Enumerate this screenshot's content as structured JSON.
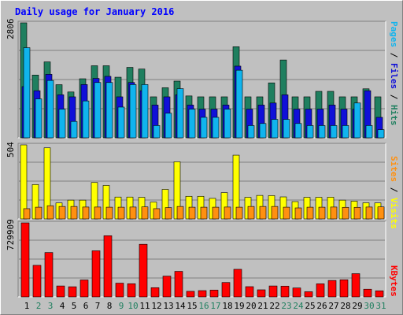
{
  "chart_data": [
    {
      "type": "bar",
      "title": "Daily usage for January 2016",
      "categories": [
        "1",
        "2",
        "3",
        "4",
        "5",
        "6",
        "7",
        "8",
        "9",
        "10",
        "11",
        "12",
        "13",
        "14",
        "15",
        "16",
        "17",
        "18",
        "19",
        "20",
        "21",
        "22",
        "23",
        "24",
        "25",
        "26",
        "27",
        "28",
        "29",
        "30",
        "31"
      ],
      "weekend_days": [
        "2",
        "3",
        "9",
        "10",
        "16",
        "17",
        "23",
        "24",
        "30",
        "31"
      ],
      "ylabel_max": "2806",
      "ylim": [
        0,
        2806
      ],
      "series": [
        {
          "name": "Hits",
          "color": "#1f7f5f",
          "values": [
            2806,
            1532,
            1853,
            1297,
            1119,
            1441,
            1759,
            1759,
            1479,
            1719,
            1679,
            1000,
            1222,
            1384,
            1022,
            1000,
            1000,
            1000,
            2223,
            1000,
            1000,
            1341,
            1900,
            1000,
            1000,
            1134,
            1134,
            1000,
            1000,
            1196,
            1000
          ]
        },
        {
          "name": "Files",
          "color": "#1010d8",
          "values": [
            1250,
            1150,
            1550,
            1050,
            1000,
            1300,
            1450,
            1500,
            1000,
            1350,
            1150,
            800,
            1000,
            1050,
            800,
            700,
            700,
            800,
            1750,
            700,
            800,
            850,
            1050,
            700,
            700,
            700,
            800,
            700,
            700,
            1150,
            500
          ]
        },
        {
          "name": "Pages",
          "color": "#10b4ee",
          "values": [
            2200,
            950,
            1400,
            700,
            400,
            900,
            1350,
            1350,
            750,
            1300,
            1300,
            300,
            600,
            1200,
            700,
            500,
            500,
            700,
            1650,
            300,
            350,
            450,
            450,
            350,
            300,
            300,
            300,
            300,
            850,
            300,
            200
          ]
        }
      ],
      "grid": true
    },
    {
      "type": "bar",
      "ylabel_max": "504",
      "ylim": [
        0,
        504
      ],
      "series": [
        {
          "name": "Visits",
          "color": "#ffff00",
          "values": [
            504,
            234,
            484,
            109,
            128,
            128,
            248,
            228,
            149,
            149,
            147,
            115,
            201,
            389,
            154,
            154,
            140,
            179,
            434,
            147,
            160,
            159,
            150,
            118,
            147,
            147,
            148,
            128,
            121,
            110,
            109
          ]
        },
        {
          "name": "Sites",
          "color": "#ff9010",
          "values": [
            70,
            80,
            90,
            85,
            85,
            81,
            81,
            80,
            80,
            81,
            82,
            70,
            77,
            85,
            80,
            80,
            80,
            81,
            80,
            85,
            85,
            85,
            80,
            75,
            80,
            80,
            81,
            79,
            79,
            81,
            82
          ]
        }
      ],
      "grid": true
    },
    {
      "type": "bar",
      "ylabel_max": "729909",
      "ylim": [
        0,
        729909
      ],
      "series": [
        {
          "name": "KBytes",
          "color": "#ff0000",
          "values": [
            729909,
            311212,
            437576,
            107878,
            100000,
            167122,
            454516,
            603334,
            135545,
            130000,
            518889,
            91000,
            205000,
            251898,
            55000,
            62000,
            67000,
            142000,
            272000,
            101000,
            70000,
            108000,
            106000,
            88000,
            51000,
            129000,
            162000,
            169000,
            229000,
            76000,
            60000
          ]
        }
      ],
      "grid": true
    }
  ]
}
